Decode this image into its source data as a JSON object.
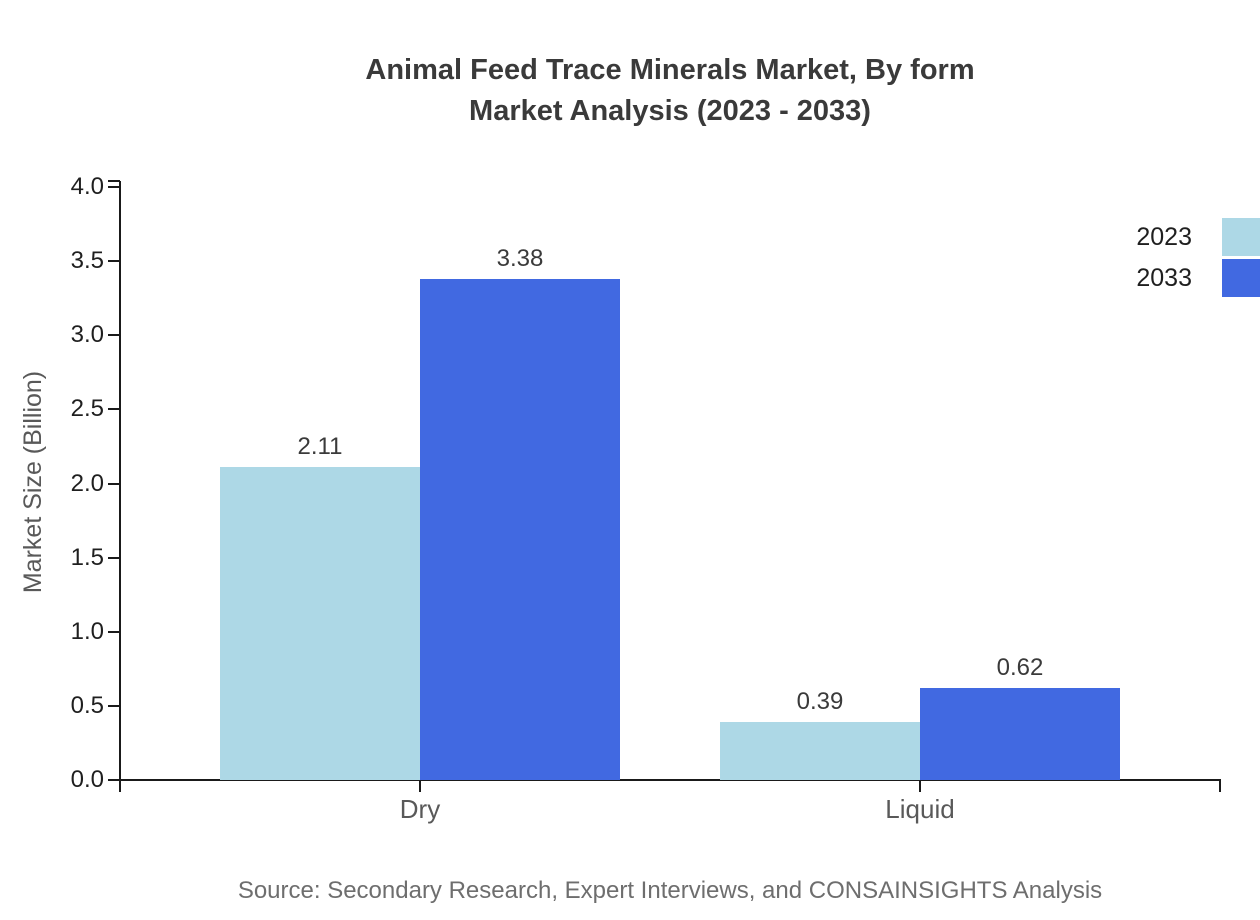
{
  "title": {
    "line1": "Animal Feed Trace Minerals Market, By form",
    "line2": "Market Analysis (2023 - 2033)"
  },
  "source": "Source: Secondary Research, Expert Interviews, and CONSAINSIGHTS Analysis",
  "legend": [
    {
      "label": "2023",
      "color": "#ADD8E6"
    },
    {
      "label": "2033",
      "color": "#4169E1"
    }
  ],
  "chart_data": {
    "type": "bar",
    "title": "Animal Feed Trace Minerals Market, By form Market Analysis (2023 - 2033)",
    "categories": [
      "Dry",
      "Liquid"
    ],
    "series": [
      {
        "name": "2023",
        "color": "#ADD8E6",
        "values": [
          2.11,
          0.39
        ],
        "value_labels": [
          "2.11",
          "0.39"
        ]
      },
      {
        "name": "2033",
        "color": "#4169E1",
        "values": [
          3.38,
          0.62
        ],
        "value_labels": [
          "3.38",
          "0.62"
        ]
      }
    ],
    "xlabel": "",
    "ylabel": "Market Size (Billion)",
    "ylim": [
      0.0,
      4.0
    ],
    "yticks": [
      0.0,
      0.5,
      1.0,
      1.5,
      2.0,
      2.5,
      3.0,
      3.5,
      4.0
    ],
    "ytick_labels": [
      "0.0",
      "0.5",
      "1.0",
      "1.5",
      "2.0",
      "2.5",
      "3.0",
      "3.5",
      "4.0"
    ],
    "grid": false,
    "legend_position": "top-right",
    "value_labels_shown": true,
    "axis_color": "#1a1a1a",
    "text_colors": {
      "title": "#3a3a3a",
      "ytick": "#1f1f1f",
      "xtick": "#595959",
      "ylabel": "#595959",
      "value_label": "#3a3a3a",
      "source": "#6e6e6e"
    }
  }
}
